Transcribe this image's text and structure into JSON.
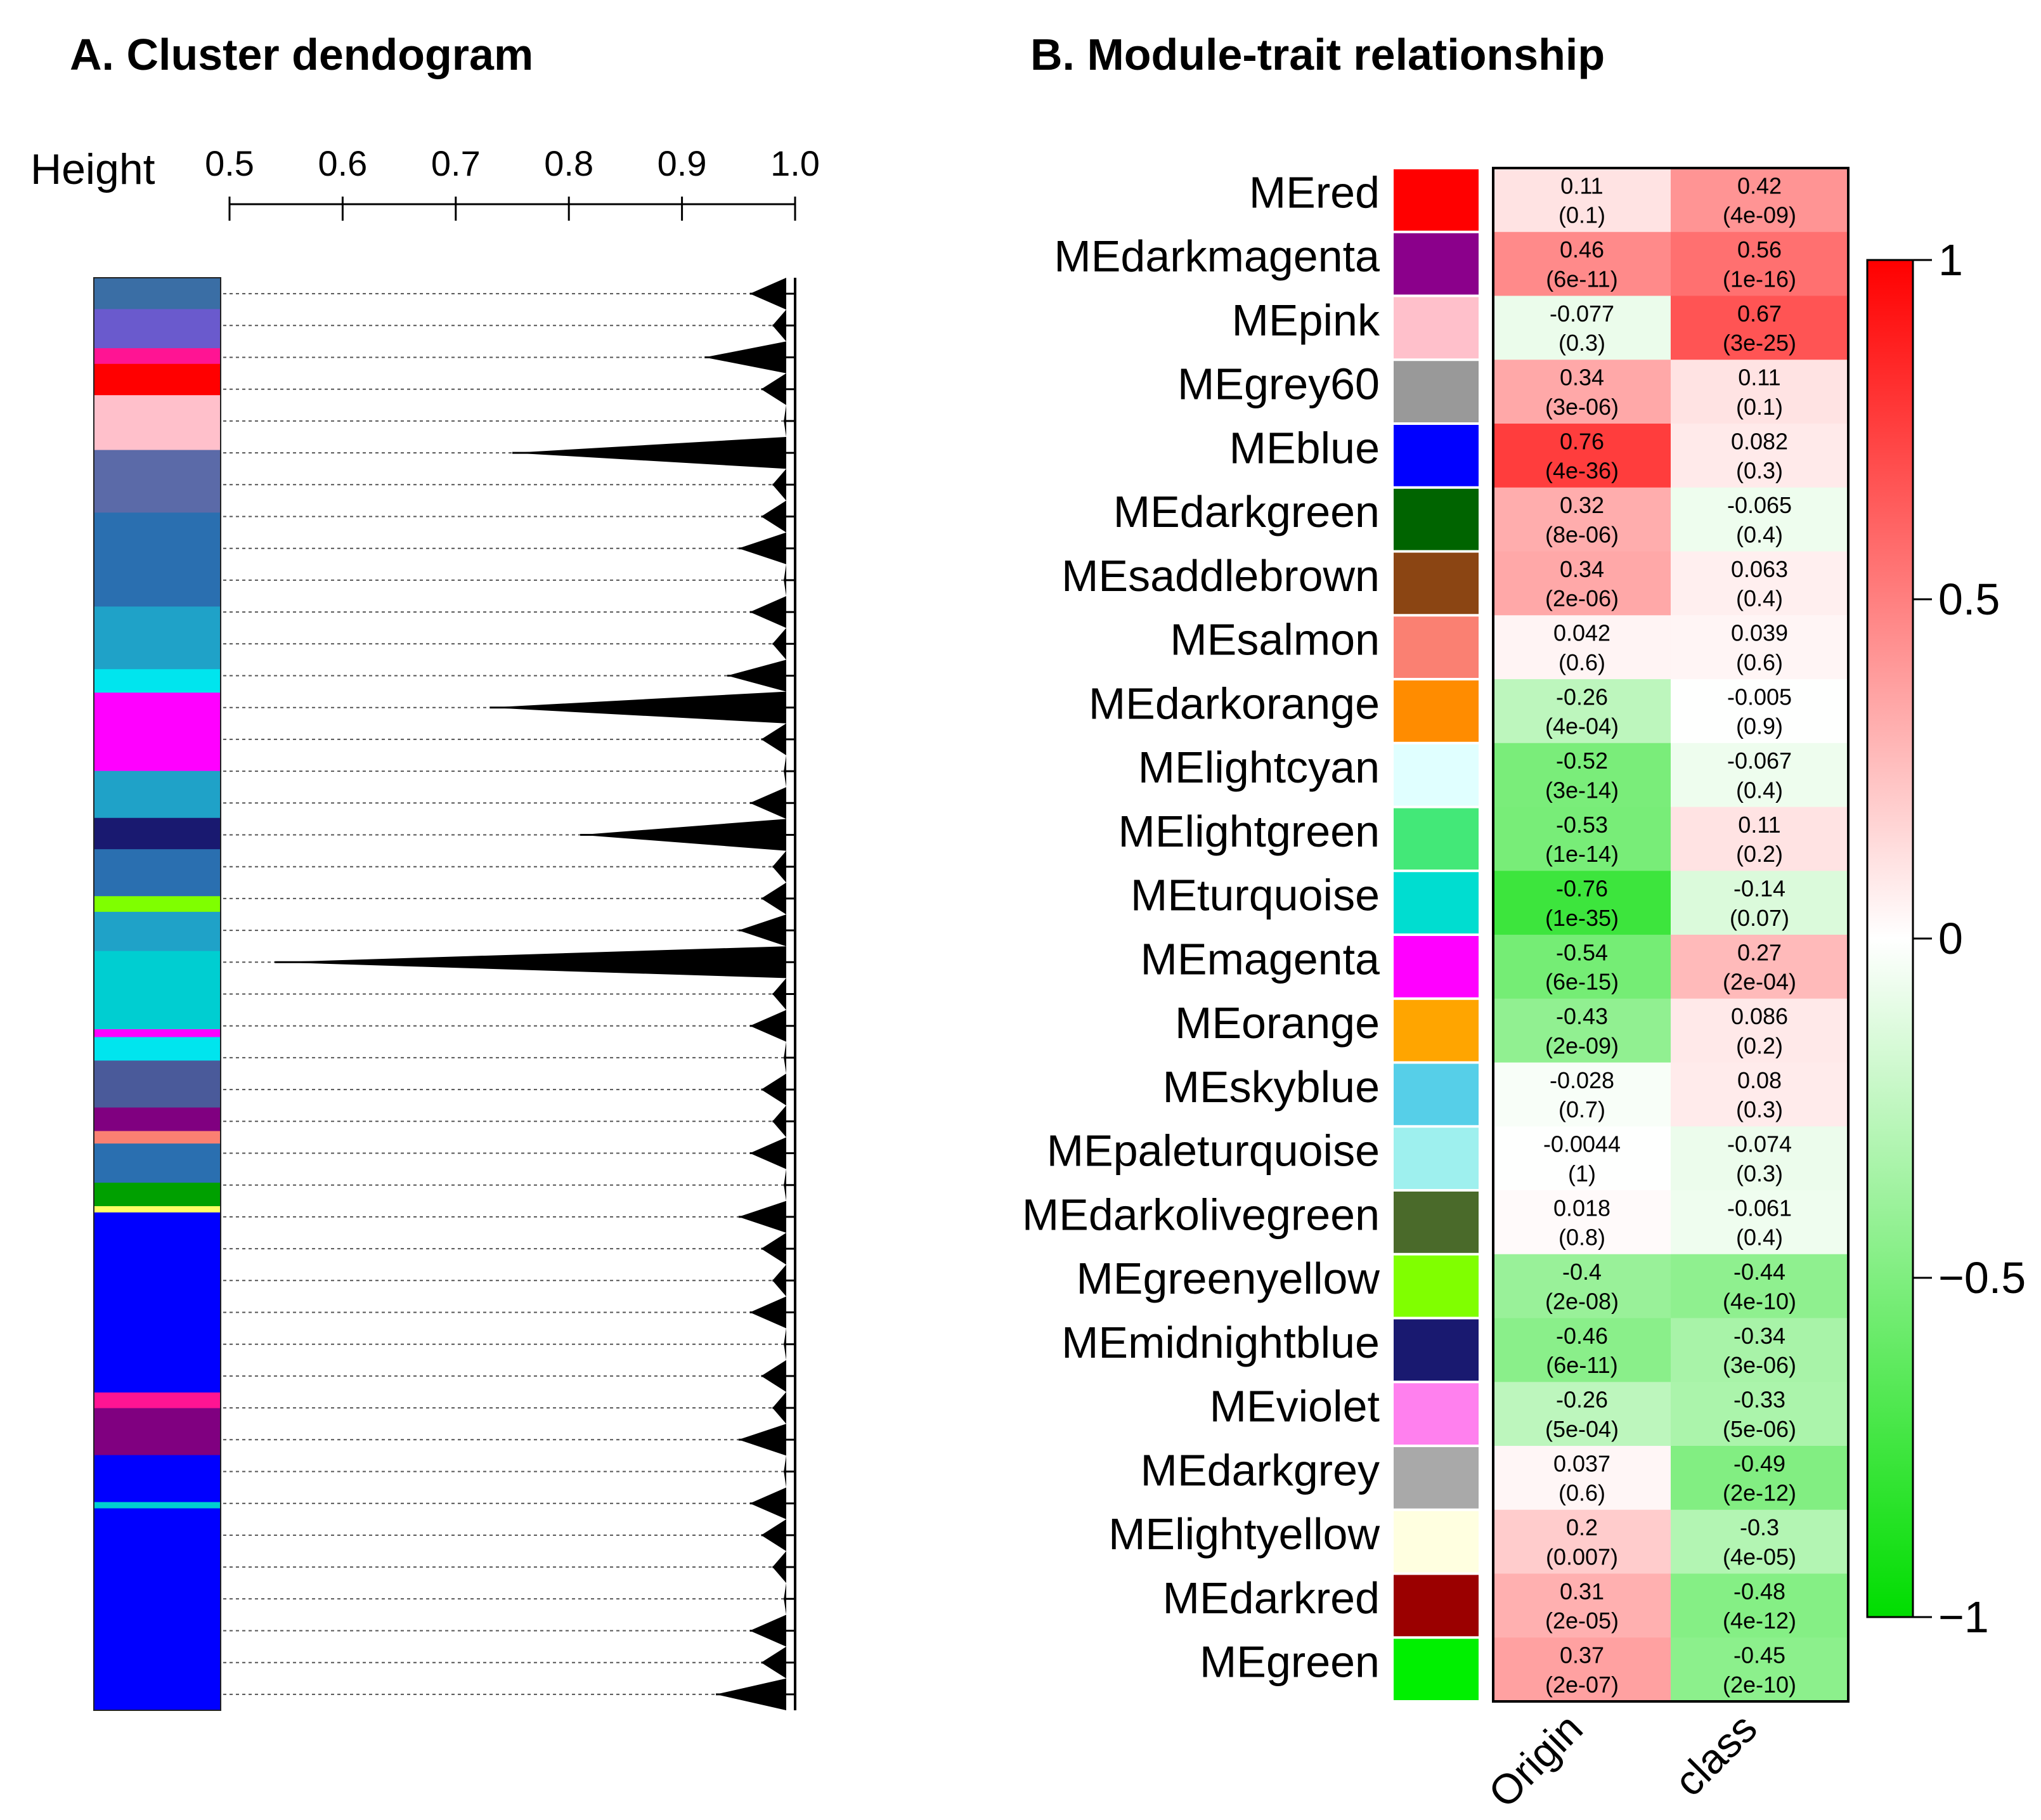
{
  "panelA": {
    "title": "A. Cluster dendogram",
    "height_label": "Height",
    "ticks": [
      "0.5",
      "0.6",
      "0.7",
      "0.8",
      "0.9",
      "1.0"
    ],
    "tick_values": [
      0.5,
      0.6,
      0.7,
      0.8,
      0.9,
      1.0
    ],
    "branch_heights": [
      0.96,
      0.98,
      0.92,
      0.97,
      0.99,
      0.75,
      0.98,
      0.97,
      0.95,
      0.99,
      0.96,
      0.98,
      0.94,
      0.73,
      0.97,
      0.99,
      0.96,
      0.81,
      0.98,
      0.97,
      0.95,
      0.54,
      0.98,
      0.96,
      0.99,
      0.97,
      0.98,
      0.96,
      0.99,
      0.95,
      0.97,
      0.98,
      0.96,
      0.99,
      0.97,
      0.98,
      0.95,
      0.99,
      0.96,
      0.97,
      0.98,
      0.99,
      0.96,
      0.97,
      0.93
    ],
    "color_bands": [
      {
        "color": "#3a6ea5",
        "frac": 0.02
      },
      {
        "color": "#6a5acd",
        "frac": 0.025
      },
      {
        "color": "#ff1493",
        "frac": 0.01
      },
      {
        "color": "#ff0000",
        "frac": 0.02
      },
      {
        "color": "#ffc0cb",
        "frac": 0.035
      },
      {
        "color": "#5b6aa8",
        "frac": 0.04
      },
      {
        "color": "#2a6fb0",
        "frac": 0.06
      },
      {
        "color": "#1fa2c8",
        "frac": 0.04
      },
      {
        "color": "#00e5ee",
        "frac": 0.015
      },
      {
        "color": "#ff00ff",
        "frac": 0.05
      },
      {
        "color": "#1fa2c8",
        "frac": 0.03
      },
      {
        "color": "#191970",
        "frac": 0.02
      },
      {
        "color": "#2a6fb0",
        "frac": 0.03
      },
      {
        "color": "#7fff00",
        "frac": 0.01
      },
      {
        "color": "#1fa2c8",
        "frac": 0.025
      },
      {
        "color": "#00ced1",
        "frac": 0.05
      },
      {
        "color": "#ff00ff",
        "frac": 0.005
      },
      {
        "color": "#00e5ee",
        "frac": 0.015
      },
      {
        "color": "#4a5a9a",
        "frac": 0.03
      },
      {
        "color": "#800080",
        "frac": 0.015
      },
      {
        "color": "#fa8072",
        "frac": 0.008
      },
      {
        "color": "#2a6fb0",
        "frac": 0.025
      },
      {
        "color": "#00a000",
        "frac": 0.015
      },
      {
        "color": "#ffff66",
        "frac": 0.004
      },
      {
        "color": "#0000ff",
        "frac": 0.115
      },
      {
        "color": "#ff1493",
        "frac": 0.01
      },
      {
        "color": "#800080",
        "frac": 0.03
      },
      {
        "color": "#0000ff",
        "frac": 0.03
      },
      {
        "color": "#00ced1",
        "frac": 0.004
      },
      {
        "color": "#0000ff",
        "frac": 0.129
      }
    ]
  },
  "panelB": {
    "title": "B. Module-trait relationship",
    "colorbar_ticks": [
      "1",
      "0.5",
      "0",
      "−0.5",
      "−1"
    ],
    "colorbar_tick_values": [
      1,
      0.5,
      0,
      -0.5,
      -1
    ]
  },
  "chart_data": {
    "type": "heatmap",
    "title": "B. Module-trait relationship",
    "columns": [
      "Origin",
      "class"
    ],
    "rows": [
      {
        "module": "MEred",
        "color": "#ff0000",
        "values": [
          0.11,
          0.42
        ],
        "labels": [
          "0.11",
          "0.42"
        ],
        "pvalues": [
          "(0.1)",
          "(4e-09)"
        ]
      },
      {
        "module": "MEdarkmagenta",
        "color": "#8b008b",
        "values": [
          0.46,
          0.56
        ],
        "labels": [
          "0.46",
          "0.56"
        ],
        "pvalues": [
          "(6e-11)",
          "(1e-16)"
        ]
      },
      {
        "module": "MEpink",
        "color": "#ffc0cb",
        "values": [
          -0.077,
          0.67
        ],
        "labels": [
          "-0.077",
          "0.67"
        ],
        "pvalues": [
          "(0.3)",
          "(3e-25)"
        ]
      },
      {
        "module": "MEgrey60",
        "color": "#999999",
        "values": [
          0.34,
          0.11
        ],
        "labels": [
          "0.34",
          "0.11"
        ],
        "pvalues": [
          "(3e-06)",
          "(0.1)"
        ]
      },
      {
        "module": "MEblue",
        "color": "#0000ff",
        "values": [
          0.76,
          0.082
        ],
        "labels": [
          "0.76",
          "0.082"
        ],
        "pvalues": [
          "(4e-36)",
          "(0.3)"
        ]
      },
      {
        "module": "MEdarkgreen",
        "color": "#006400",
        "values": [
          0.32,
          -0.065
        ],
        "labels": [
          "0.32",
          "-0.065"
        ],
        "pvalues": [
          "(8e-06)",
          "(0.4)"
        ]
      },
      {
        "module": "MEsaddlebrown",
        "color": "#8b4513",
        "values": [
          0.34,
          0.063
        ],
        "labels": [
          "0.34",
          "0.063"
        ],
        "pvalues": [
          "(2e-06)",
          "(0.4)"
        ]
      },
      {
        "module": "MEsalmon",
        "color": "#fa8072",
        "values": [
          0.042,
          0.039
        ],
        "labels": [
          "0.042",
          "0.039"
        ],
        "pvalues": [
          "(0.6)",
          "(0.6)"
        ]
      },
      {
        "module": "MEdarkorange",
        "color": "#ff8c00",
        "values": [
          -0.26,
          -0.005
        ],
        "labels": [
          "-0.26",
          "-0.005"
        ],
        "pvalues": [
          "(4e-04)",
          "(0.9)"
        ]
      },
      {
        "module": "MElightcyan",
        "color": "#e0ffff",
        "values": [
          -0.52,
          -0.067
        ],
        "labels": [
          "-0.52",
          "-0.067"
        ],
        "pvalues": [
          "(3e-14)",
          "(0.4)"
        ]
      },
      {
        "module": "MElightgreen",
        "color": "#43e878",
        "values": [
          -0.53,
          0.11
        ],
        "labels": [
          "-0.53",
          "0.11"
        ],
        "pvalues": [
          "(1e-14)",
          "(0.2)"
        ]
      },
      {
        "module": "MEturquoise",
        "color": "#00ddd0",
        "values": [
          -0.76,
          -0.14
        ],
        "labels": [
          "-0.76",
          "-0.14"
        ],
        "pvalues": [
          "(1e-35)",
          "(0.07)"
        ]
      },
      {
        "module": "MEmagenta",
        "color": "#ff00ff",
        "values": [
          -0.54,
          0.27
        ],
        "labels": [
          "-0.54",
          "0.27"
        ],
        "pvalues": [
          "(6e-15)",
          "(2e-04)"
        ]
      },
      {
        "module": "MEorange",
        "color": "#ffa500",
        "values": [
          -0.43,
          0.086
        ],
        "labels": [
          "-0.43",
          "0.086"
        ],
        "pvalues": [
          "(2e-09)",
          "(0.2)"
        ]
      },
      {
        "module": "MEskyblue",
        "color": "#56cfe8",
        "values": [
          -0.028,
          0.08
        ],
        "labels": [
          "-0.028",
          "0.08"
        ],
        "pvalues": [
          "(0.7)",
          "(0.3)"
        ]
      },
      {
        "module": "MEpaleturquoise",
        "color": "#9ef0ee",
        "values": [
          -0.0044,
          -0.074
        ],
        "labels": [
          "-0.0044",
          "-0.074"
        ],
        "pvalues": [
          "(1)",
          "(0.3)"
        ]
      },
      {
        "module": "MEdarkolivegreen",
        "color": "#4a6a2a",
        "values": [
          0.018,
          -0.061
        ],
        "labels": [
          "0.018",
          "-0.061"
        ],
        "pvalues": [
          "(0.8)",
          "(0.4)"
        ]
      },
      {
        "module": "MEgreenyellow",
        "color": "#80ff00",
        "values": [
          -0.4,
          -0.44
        ],
        "labels": [
          "-0.4",
          "-0.44"
        ],
        "pvalues": [
          "(2e-08)",
          "(4e-10)"
        ]
      },
      {
        "module": "MEmidnightblue",
        "color": "#191970",
        "values": [
          -0.46,
          -0.34
        ],
        "labels": [
          "-0.46",
          "-0.34"
        ],
        "pvalues": [
          "(6e-11)",
          "(3e-06)"
        ]
      },
      {
        "module": "MEviolet",
        "color": "#ff80ee",
        "values": [
          -0.26,
          -0.33
        ],
        "labels": [
          "-0.26",
          "-0.33"
        ],
        "pvalues": [
          "(5e-04)",
          "(5e-06)"
        ]
      },
      {
        "module": "MEdarkgrey",
        "color": "#a9a9a9",
        "values": [
          0.037,
          -0.49
        ],
        "labels": [
          "0.037",
          "-0.49"
        ],
        "pvalues": [
          "(0.6)",
          "(2e-12)"
        ]
      },
      {
        "module": "MElightyellow",
        "color": "#ffffe0",
        "values": [
          0.2,
          -0.3
        ],
        "labels": [
          "0.2",
          "-0.3"
        ],
        "pvalues": [
          "(0.007)",
          "(4e-05)"
        ]
      },
      {
        "module": "MEdarkred",
        "color": "#9b0000",
        "values": [
          0.31,
          -0.48
        ],
        "labels": [
          "0.31",
          "-0.48"
        ],
        "pvalues": [
          "(2e-05)",
          "(4e-12)"
        ]
      },
      {
        "module": "MEgreen",
        "color": "#00f000",
        "values": [
          0.37,
          -0.45
        ],
        "labels": [
          "0.37",
          "-0.45"
        ],
        "pvalues": [
          "(2e-07)",
          "(2e-10)"
        ]
      }
    ],
    "colorscale": {
      "min": -1,
      "max": 1,
      "low_color": "#00dd00",
      "mid_color": "#ffffff",
      "high_color": "#ff0000"
    }
  }
}
